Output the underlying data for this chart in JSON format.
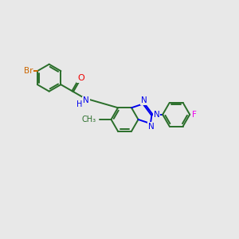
{
  "bg_color": "#e8e8e8",
  "bond_color": "#2a6e2a",
  "n_color": "#0000ee",
  "o_color": "#ee0000",
  "br_color": "#cc6600",
  "f_color": "#ee00ee",
  "lw": 1.4,
  "dbo": 0.028,
  "r_hex": 0.52,
  "xlim": [
    -0.5,
    8.5
  ],
  "ylim": [
    -2.5,
    3.5
  ]
}
